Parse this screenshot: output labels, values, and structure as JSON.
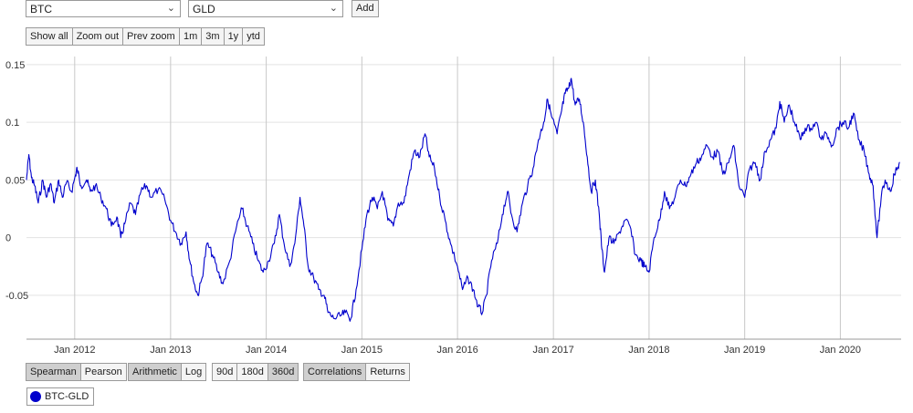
{
  "selectors": {
    "asset1": "BTC",
    "asset2": "GLD",
    "add_label": "Add"
  },
  "zoom_controls": [
    "Show all",
    "Zoom out",
    "Prev zoom"
  ],
  "range_controls": [
    "1m",
    "3m",
    "1y",
    "ytd"
  ],
  "method_controls": [
    {
      "label": "Spearman",
      "active": true
    },
    {
      "label": "Pearson",
      "active": false
    }
  ],
  "scale_controls": [
    {
      "label": "Arithmetic",
      "active": true
    },
    {
      "label": "Log",
      "active": false
    }
  ],
  "window_controls": [
    {
      "label": "90d",
      "active": false
    },
    {
      "label": "180d",
      "active": false
    },
    {
      "label": "360d",
      "active": true
    }
  ],
  "view_controls": [
    {
      "label": "Correlations",
      "active": true
    },
    {
      "label": "Returns",
      "active": false
    }
  ],
  "legend": {
    "label": "BTC-GLD",
    "color": "#0000cc"
  },
  "chart_data": {
    "type": "line",
    "series": [
      {
        "name": "BTC-GLD",
        "color": "#0000cc",
        "points": [
          [
            "2011-07-01",
            0.05
          ],
          [
            "2011-07-10",
            0.072
          ],
          [
            "2011-07-20",
            0.052
          ],
          [
            "2011-08-01",
            0.045
          ],
          [
            "2011-08-15",
            0.03
          ],
          [
            "2011-09-01",
            0.05
          ],
          [
            "2011-09-15",
            0.035
          ],
          [
            "2011-10-01",
            0.047
          ],
          [
            "2011-10-15",
            0.03
          ],
          [
            "2011-11-01",
            0.05
          ],
          [
            "2011-11-15",
            0.035
          ],
          [
            "2011-12-01",
            0.048
          ],
          [
            "2011-12-20",
            0.04
          ],
          [
            "2012-01-05",
            0.055
          ],
          [
            "2012-01-10",
            0.06
          ],
          [
            "2012-01-25",
            0.045
          ],
          [
            "2012-02-15",
            0.05
          ],
          [
            "2012-03-01",
            0.04
          ],
          [
            "2012-03-20",
            0.045
          ],
          [
            "2012-04-10",
            0.035
          ],
          [
            "2012-05-01",
            0.025
          ],
          [
            "2012-05-20",
            0.01
          ],
          [
            "2012-06-10",
            0.018
          ],
          [
            "2012-06-25",
            0.0
          ],
          [
            "2012-07-10",
            0.012
          ],
          [
            "2012-08-01",
            0.03
          ],
          [
            "2012-08-20",
            0.02
          ],
          [
            "2012-09-10",
            0.04
          ],
          [
            "2012-10-01",
            0.045
          ],
          [
            "2012-10-20",
            0.035
          ],
          [
            "2012-11-15",
            0.042
          ],
          [
            "2012-12-10",
            0.033
          ],
          [
            "2013-01-01",
            0.015
          ],
          [
            "2013-01-20",
            0.005
          ],
          [
            "2013-02-10",
            -0.005
          ],
          [
            "2013-03-01",
            0.005
          ],
          [
            "2013-03-15",
            -0.02
          ],
          [
            "2013-04-01",
            -0.04
          ],
          [
            "2013-04-15",
            -0.05
          ],
          [
            "2013-05-01",
            -0.035
          ],
          [
            "2013-05-20",
            -0.005
          ],
          [
            "2013-06-10",
            -0.015
          ],
          [
            "2013-07-01",
            -0.03
          ],
          [
            "2013-07-20",
            -0.04
          ],
          [
            "2013-08-15",
            -0.02
          ],
          [
            "2013-09-10",
            0.01
          ],
          [
            "2013-10-01",
            0.025
          ],
          [
            "2013-10-20",
            0.01
          ],
          [
            "2013-11-10",
            -0.005
          ],
          [
            "2013-12-01",
            -0.02
          ],
          [
            "2013-12-20",
            -0.03
          ],
          [
            "2014-01-10",
            -0.02
          ],
          [
            "2014-02-01",
            -0.005
          ],
          [
            "2014-02-20",
            0.02
          ],
          [
            "2014-03-10",
            -0.005
          ],
          [
            "2014-04-01",
            -0.025
          ],
          [
            "2014-04-20",
            -0.005
          ],
          [
            "2014-05-10",
            0.035
          ],
          [
            "2014-05-25",
            0.01
          ],
          [
            "2014-06-10",
            -0.025
          ],
          [
            "2014-07-01",
            -0.035
          ],
          [
            "2014-07-20",
            -0.045
          ],
          [
            "2014-08-10",
            -0.05
          ],
          [
            "2014-08-25",
            -0.065
          ],
          [
            "2014-09-15",
            -0.07
          ],
          [
            "2014-10-10",
            -0.068
          ],
          [
            "2014-10-30",
            -0.065
          ],
          [
            "2014-11-20",
            -0.07
          ],
          [
            "2014-12-10",
            -0.045
          ],
          [
            "2015-01-01",
            -0.01
          ],
          [
            "2015-01-20",
            0.02
          ],
          [
            "2015-02-10",
            0.035
          ],
          [
            "2015-03-01",
            0.025
          ],
          [
            "2015-03-20",
            0.04
          ],
          [
            "2015-04-10",
            0.015
          ],
          [
            "2015-05-01",
            0.01
          ],
          [
            "2015-05-20",
            0.03
          ],
          [
            "2015-06-10",
            0.03
          ],
          [
            "2015-07-01",
            0.055
          ],
          [
            "2015-07-20",
            0.075
          ],
          [
            "2015-08-10",
            0.07
          ],
          [
            "2015-08-30",
            0.09
          ],
          [
            "2015-09-15",
            0.07
          ],
          [
            "2015-10-05",
            0.06
          ],
          [
            "2015-10-25",
            0.035
          ],
          [
            "2015-11-15",
            0.015
          ],
          [
            "2015-12-05",
            -0.005
          ],
          [
            "2016-01-01",
            -0.025
          ],
          [
            "2016-01-20",
            -0.045
          ],
          [
            "2016-02-10",
            -0.035
          ],
          [
            "2016-03-01",
            -0.045
          ],
          [
            "2016-03-20",
            -0.06
          ],
          [
            "2016-04-05",
            -0.065
          ],
          [
            "2016-04-20",
            -0.05
          ],
          [
            "2016-05-10",
            -0.02
          ],
          [
            "2016-06-01",
            -0.005
          ],
          [
            "2016-06-20",
            0.02
          ],
          [
            "2016-07-10",
            0.04
          ],
          [
            "2016-07-25",
            0.02
          ],
          [
            "2016-08-15",
            0.005
          ],
          [
            "2016-09-05",
            0.03
          ],
          [
            "2016-09-25",
            0.045
          ],
          [
            "2016-10-15",
            0.06
          ],
          [
            "2016-11-05",
            0.085
          ],
          [
            "2016-11-25",
            0.1
          ],
          [
            "2016-12-10",
            0.12
          ],
          [
            "2016-12-25",
            0.105
          ],
          [
            "2017-01-15",
            0.09
          ],
          [
            "2017-02-01",
            0.11
          ],
          [
            "2017-02-15",
            0.125
          ],
          [
            "2017-03-01",
            0.13
          ],
          [
            "2017-03-10",
            0.138
          ],
          [
            "2017-03-25",
            0.115
          ],
          [
            "2017-04-10",
            0.12
          ],
          [
            "2017-04-25",
            0.1
          ],
          [
            "2017-05-10",
            0.07
          ],
          [
            "2017-05-25",
            0.04
          ],
          [
            "2017-06-10",
            0.05
          ],
          [
            "2017-06-25",
            0.02
          ],
          [
            "2017-07-05",
            -0.01
          ],
          [
            "2017-07-15",
            -0.03
          ],
          [
            "2017-08-01",
            0.0
          ],
          [
            "2017-08-20",
            -0.005
          ],
          [
            "2017-09-10",
            0.005
          ],
          [
            "2017-10-01",
            0.015
          ],
          [
            "2017-10-20",
            0.01
          ],
          [
            "2017-11-10",
            -0.015
          ],
          [
            "2017-12-01",
            -0.02
          ],
          [
            "2017-12-15",
            -0.025
          ],
          [
            "2018-01-01",
            -0.03
          ],
          [
            "2018-01-20",
            0.0
          ],
          [
            "2018-02-10",
            0.015
          ],
          [
            "2018-03-01",
            0.04
          ],
          [
            "2018-03-20",
            0.025
          ],
          [
            "2018-04-10",
            0.035
          ],
          [
            "2018-05-01",
            0.05
          ],
          [
            "2018-05-20",
            0.045
          ],
          [
            "2018-06-10",
            0.055
          ],
          [
            "2018-07-01",
            0.065
          ],
          [
            "2018-07-20",
            0.07
          ],
          [
            "2018-08-10",
            0.08
          ],
          [
            "2018-09-01",
            0.07
          ],
          [
            "2018-09-20",
            0.075
          ],
          [
            "2018-10-10",
            0.055
          ],
          [
            "2018-11-01",
            0.065
          ],
          [
            "2018-11-20",
            0.08
          ],
          [
            "2018-12-10",
            0.045
          ],
          [
            "2019-01-01",
            0.035
          ],
          [
            "2019-01-20",
            0.06
          ],
          [
            "2019-02-10",
            0.065
          ],
          [
            "2019-03-01",
            0.05
          ],
          [
            "2019-03-20",
            0.075
          ],
          [
            "2019-04-10",
            0.085
          ],
          [
            "2019-05-01",
            0.095
          ],
          [
            "2019-05-15",
            0.118
          ],
          [
            "2019-06-01",
            0.1
          ],
          [
            "2019-06-20",
            0.115
          ],
          [
            "2019-07-10",
            0.1
          ],
          [
            "2019-08-01",
            0.085
          ],
          [
            "2019-08-20",
            0.095
          ],
          [
            "2019-09-10",
            0.095
          ],
          [
            "2019-10-01",
            0.1
          ],
          [
            "2019-10-20",
            0.085
          ],
          [
            "2019-11-10",
            0.09
          ],
          [
            "2019-12-01",
            0.08
          ],
          [
            "2019-12-20",
            0.095
          ],
          [
            "2020-01-10",
            0.1
          ],
          [
            "2020-02-01",
            0.095
          ],
          [
            "2020-02-20",
            0.108
          ],
          [
            "2020-03-10",
            0.085
          ],
          [
            "2020-04-01",
            0.075
          ],
          [
            "2020-04-20",
            0.055
          ],
          [
            "2020-05-05",
            0.045
          ],
          [
            "2020-05-20",
            0.0
          ],
          [
            "2020-06-05",
            0.035
          ],
          [
            "2020-06-20",
            0.05
          ],
          [
            "2020-07-10",
            0.04
          ],
          [
            "2020-07-25",
            0.055
          ],
          [
            "2020-08-05",
            0.06
          ],
          [
            "2020-08-15",
            0.065
          ]
        ]
      }
    ],
    "x_ticks": [
      "Jan 2012",
      "Jan 2013",
      "Jan 2014",
      "Jan 2015",
      "Jan 2016",
      "Jan 2017",
      "Jan 2018",
      "Jan 2019",
      "Jan 2020"
    ],
    "x_tick_dates": [
      "2012-01-01",
      "2013-01-01",
      "2014-01-01",
      "2015-01-01",
      "2016-01-01",
      "2017-01-01",
      "2018-01-01",
      "2019-01-01",
      "2020-01-01"
    ],
    "y_ticks": [
      {
        "label": "0.15",
        "value": 0.15
      },
      {
        "label": "0.1",
        "value": 0.1
      },
      {
        "label": "0.05",
        "value": 0.05
      },
      {
        "label": "0",
        "value": 0
      },
      {
        "label": "-0.05",
        "value": -0.05
      }
    ],
    "xlim": [
      "2011-07-01",
      "2020-08-20"
    ],
    "ylim": [
      -0.088,
      0.157
    ],
    "grid": true
  }
}
